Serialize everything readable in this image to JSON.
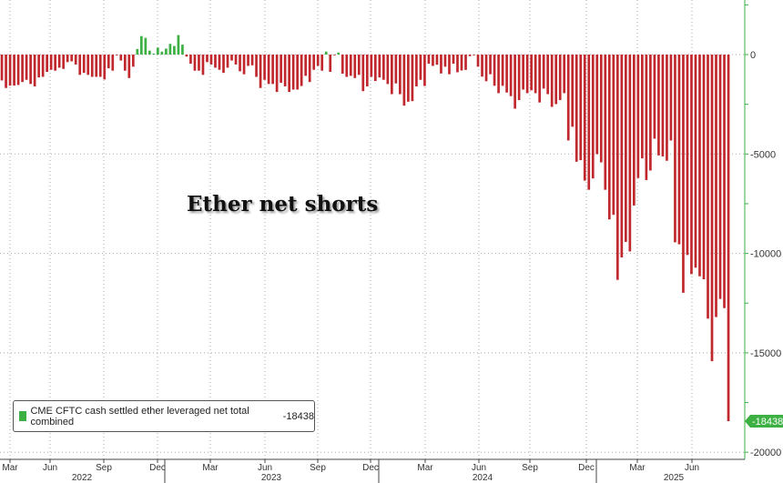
{
  "chart_data": {
    "type": "bar",
    "title": "Ether net shorts",
    "legend": {
      "label": "CME CFTC cash settled ether leveraged net total combined",
      "last_value": "-18438",
      "placement": "bottom-left"
    },
    "ylim": [
      -20000,
      2500
    ],
    "y_ticks": [
      0,
      -5000,
      -10000,
      -15000,
      -20000
    ],
    "y_tick_labels": [
      "0",
      "-5000",
      "-10000",
      "-15000",
      "-20000"
    ],
    "current_value_label": "-18438",
    "x_tick_labels": [
      "Mar",
      "Jun",
      "Sep",
      "Dec",
      "Mar",
      "Jun",
      "Sep",
      "Dec",
      "Mar",
      "Jun",
      "Sep",
      "Dec",
      "Mar",
      "Jun"
    ],
    "year_labels": [
      "2022",
      "2023",
      "2024",
      "2025"
    ],
    "grid": true,
    "colors": {
      "positive": "#3cb043",
      "negative": "#c0282d",
      "axis": "#3cb043"
    },
    "values": [
      -1300,
      -1680,
      -1560,
      -1560,
      -1530,
      -1380,
      -1270,
      -1480,
      -1600,
      -1150,
      -1120,
      -870,
      -765,
      -810,
      -660,
      -720,
      -380,
      -340,
      -500,
      -1020,
      -920,
      -1020,
      -1120,
      -1120,
      -1120,
      -1250,
      -690,
      -810,
      -30,
      -300,
      -810,
      -1180,
      -610,
      280,
      930,
      840,
      200,
      50,
      350,
      150,
      300,
      540,
      430,
      980,
      500,
      -100,
      -460,
      -810,
      -810,
      -1020,
      -380,
      -500,
      -660,
      -765,
      -920,
      -660,
      -300,
      -500,
      -840,
      -990,
      -570,
      -540,
      -1120,
      -1680,
      -1270,
      -1480,
      -1480,
      -1880,
      -1420,
      -1600,
      -1880,
      -1760,
      -1760,
      -1580,
      -1070,
      -1380,
      -765,
      -570,
      -810,
      150,
      -870,
      -30,
      100,
      -960,
      -1120,
      -1070,
      -1180,
      -1020,
      -1840,
      -1600,
      -1120,
      -1330,
      -1150,
      -1270,
      -1480,
      -1990,
      -1450,
      -1990,
      -2570,
      -2370,
      -2340,
      -1600,
      -1270,
      -1580,
      -460,
      -570,
      -510,
      -950,
      -610,
      -990,
      -460,
      -890,
      -800,
      -770,
      -80,
      -30,
      -610,
      -1110,
      -1340,
      -990,
      -1570,
      -1940,
      -1570,
      -1910,
      -2090,
      -2720,
      -2290,
      -1760,
      -1940,
      -1800,
      -1940,
      -2410,
      -1710,
      -1990,
      -2630,
      -2490,
      -2290,
      -1940,
      -4320,
      -3630,
      -5390,
      -5310,
      -6340,
      -6800,
      -6230,
      -5010,
      -5420,
      -6800,
      -8290,
      -8060,
      -11330,
      -10200,
      -9420,
      -9900,
      -7590,
      -6210,
      -5220,
      -6310,
      -5830,
      -4230,
      -5070,
      -5120,
      -5340,
      -4320,
      -9440,
      -9540,
      -11980,
      -10080,
      -11040,
      -10720,
      -11150,
      -11300,
      -13280,
      -15420,
      -13200,
      -12290,
      -12750,
      -18438
    ]
  }
}
